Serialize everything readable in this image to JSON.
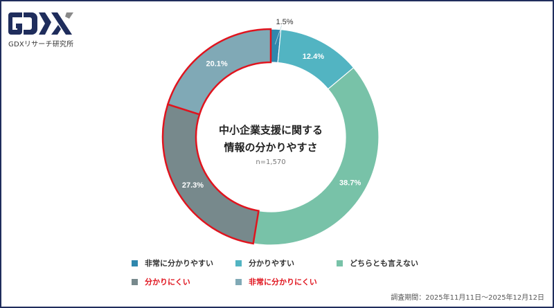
{
  "brand": {
    "logo_text": "GDX",
    "subtitle": "GDXリサーチ研究所",
    "color": "#1f2d5c"
  },
  "chart_data": {
    "type": "pie",
    "variant": "donut",
    "title": "中小企業支援に関する情報の分かりやすさ",
    "title_lines": [
      "中小企業支援に関する",
      "情報の分かりやすさ"
    ],
    "sample": "n=1,570",
    "categories": [
      "非常に分かりやすい",
      "分かりやすい",
      "どちらとも言えない",
      "分かりにくい",
      "非常に分かりにくい"
    ],
    "values": [
      1.5,
      12.4,
      38.7,
      27.3,
      20.1
    ],
    "labels": [
      "1.5%",
      "12.4%",
      "38.7%",
      "27.3%",
      "20.1%"
    ],
    "colors": [
      "#2f87ad",
      "#52b4c2",
      "#78c2a8",
      "#77898c",
      "#80a9b6"
    ],
    "highlighted": [
      false,
      false,
      false,
      true,
      true
    ],
    "highlight_color": "#e0141e",
    "start_angle": "12 o'clock, clockwise",
    "legend_position": "bottom"
  },
  "legend": {
    "items": [
      {
        "label": "非常に分かりやすい",
        "color": "#2f87ad",
        "text_color": "#333333"
      },
      {
        "label": "分かりやすい",
        "color": "#52b4c2",
        "text_color": "#333333"
      },
      {
        "label": "どちらとも言えない",
        "color": "#78c2a8",
        "text_color": "#333333"
      },
      {
        "label": "分かりにくい",
        "color": "#77898c",
        "text_color": "#e0141e"
      },
      {
        "label": "非常に分かりにくい",
        "color": "#80a9b6",
        "text_color": "#e0141e"
      }
    ]
  },
  "footer": {
    "survey_period": "調査期間：2025年11月11日～2025年12月12日"
  }
}
